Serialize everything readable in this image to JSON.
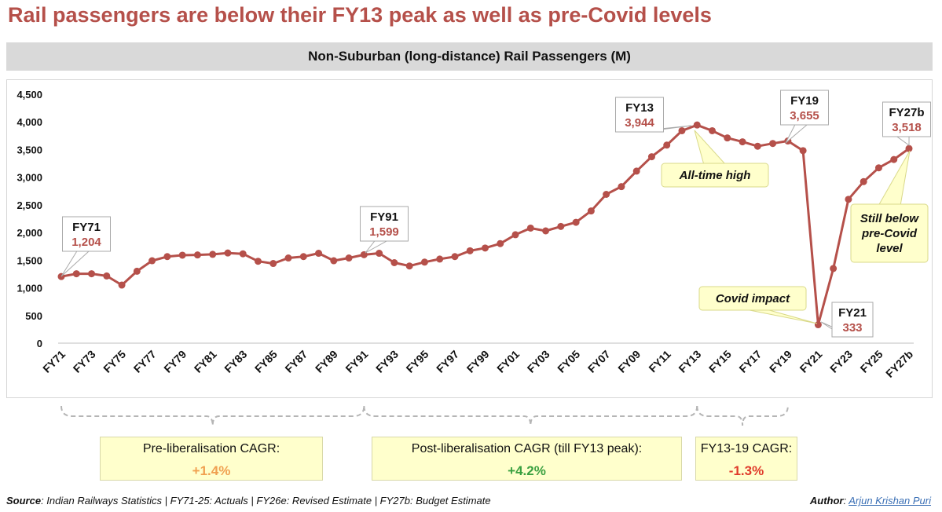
{
  "headline": "Rail passengers are below their FY13 peak as well as pre-Covid levels",
  "chart_data": {
    "type": "line",
    "title": "Non-Suburban (long-distance) Rail Passengers (M)",
    "xlabel": "",
    "ylabel": "",
    "ylim": [
      0,
      4500
    ],
    "yticks": [
      0,
      500,
      1000,
      1500,
      2000,
      2500,
      3000,
      3500,
      4000,
      4500
    ],
    "grid": false,
    "categories": [
      "FY71",
      "FY72",
      "FY73",
      "FY74",
      "FY75",
      "FY76",
      "FY77",
      "FY78",
      "FY79",
      "FY80",
      "FY81",
      "FY82",
      "FY83",
      "FY84",
      "FY85",
      "FY86",
      "FY87",
      "FY88",
      "FY89",
      "FY90",
      "FY91",
      "FY92",
      "FY93",
      "FY94",
      "FY95",
      "FY96",
      "FY97",
      "FY98",
      "FY99",
      "FY00",
      "FY01",
      "FY02",
      "FY03",
      "FY04",
      "FY05",
      "FY06",
      "FY07",
      "FY08",
      "FY09",
      "FY10",
      "FY11",
      "FY12",
      "FY13",
      "FY14",
      "FY15",
      "FY16",
      "FY17",
      "FY18",
      "FY19",
      "FY20",
      "FY21",
      "FY22",
      "FY23",
      "FY24",
      "FY25",
      "FY26e",
      "FY27b"
    ],
    "tick_labels": [
      "FY71",
      "FY73",
      "FY75",
      "FY77",
      "FY79",
      "FY81",
      "FY83",
      "FY85",
      "FY87",
      "FY89",
      "FY91",
      "FY93",
      "FY95",
      "FY97",
      "FY99",
      "FY01",
      "FY03",
      "FY05",
      "FY07",
      "FY09",
      "FY11",
      "FY13",
      "FY15",
      "FY17",
      "FY19",
      "FY21",
      "FY23",
      "FY25",
      "FY27b"
    ],
    "values": [
      1204,
      1255,
      1255,
      1215,
      1050,
      1300,
      1490,
      1565,
      1590,
      1595,
      1605,
      1630,
      1615,
      1480,
      1440,
      1540,
      1565,
      1625,
      1490,
      1540,
      1599,
      1625,
      1455,
      1395,
      1465,
      1520,
      1565,
      1670,
      1720,
      1800,
      1960,
      2080,
      2030,
      2110,
      2185,
      2390,
      2690,
      2830,
      3110,
      3370,
      3580,
      3840,
      3944,
      3840,
      3710,
      3640,
      3560,
      3610,
      3655,
      3480,
      333,
      1350,
      2600,
      2920,
      3170,
      3320,
      3518
    ],
    "series": [
      {
        "name": "",
        "color": "#b5504a"
      }
    ],
    "callouts": [
      {
        "category": "FY71",
        "label": "FY71",
        "value": "1,204"
      },
      {
        "category": "FY91",
        "label": "FY91",
        "value": "1,599"
      },
      {
        "category": "FY13",
        "label": "FY13",
        "value": "3,944"
      },
      {
        "category": "FY19",
        "label": "FY19",
        "value": "3,655"
      },
      {
        "category": "FY21",
        "label": "FY21",
        "value": "333"
      },
      {
        "category": "FY27b",
        "label": "FY27b",
        "value": "3,518"
      }
    ],
    "annotations": [
      {
        "category": "FY13",
        "text": "All-time high"
      },
      {
        "category": "FY21",
        "text": "Covid impact"
      },
      {
        "category": "FY27b",
        "text": "Still below pre-Covid level"
      }
    ]
  },
  "periods": [
    {
      "label": "Pre-liberalisation CAGR:",
      "value": "+1.4%",
      "color": "#f0a050"
    },
    {
      "label": "Post-liberalisation CAGR (till FY13 peak):",
      "value": "+4.2%",
      "color": "#3aa040"
    },
    {
      "label": "FY13-19 CAGR:",
      "value": "-1.3%",
      "color": "#e03a2a"
    }
  ],
  "footer": {
    "source_label": "Source",
    "source_text": ": Indian Railways Statistics | FY71-25: Actuals | FY26e: Revised Estimate | FY27b: Budget Estimate",
    "author_label": "Author",
    "author_sep": ": ",
    "author_name": "Arjun Krishan Puri"
  }
}
